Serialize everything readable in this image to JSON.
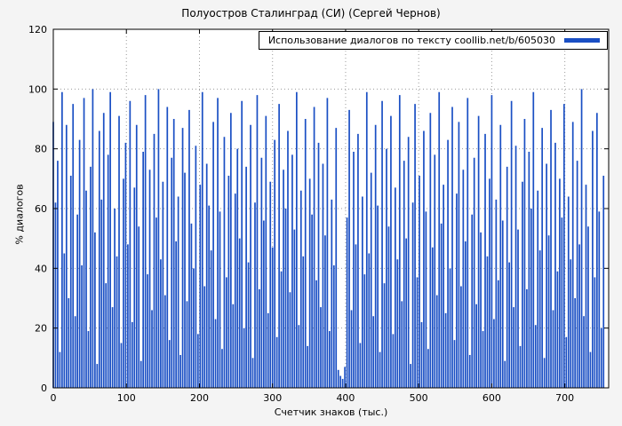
{
  "figure": {
    "title": "Полуостров Сталинград (СИ) (Сергей Чернов)",
    "legend_label": "Использование диалогов по тексту coollib.net/b/605030",
    "xlabel": "Счетчик знаков (тыс.)",
    "ylabel": "% диалогов"
  },
  "chart_data": {
    "type": "bar",
    "title": "Полуостров Сталинград (СИ) (Сергей Чернов)",
    "legend": "Использование диалогов по тексту coollib.net/b/605030",
    "xlabel": "Счетчик знаков (тыс.)",
    "ylabel": "% диалогов",
    "legend_position": "top-right-boxed",
    "grid": "dotted",
    "bar_color": "#1a4fc4",
    "background_color": "#f4f4f4",
    "plot_background": "#ffffff",
    "xlim": [
      0,
      760
    ],
    "ylim": [
      0,
      120
    ],
    "xticks": [
      0,
      100,
      200,
      300,
      400,
      500,
      600,
      700
    ],
    "yticks": [
      0,
      20,
      40,
      60,
      80,
      100,
      120
    ],
    "x_start": 0,
    "x_step": 3,
    "values": [
      89,
      62,
      76,
      12,
      99,
      45,
      88,
      30,
      71,
      95,
      24,
      58,
      83,
      41,
      97,
      66,
      19,
      74,
      100,
      52,
      8,
      86,
      63,
      92,
      35,
      78,
      99,
      27,
      60,
      44,
      91,
      15,
      70,
      82,
      48,
      96,
      22,
      67,
      88,
      54,
      9,
      79,
      98,
      38,
      73,
      26,
      85,
      57,
      100,
      43,
      69,
      31,
      94,
      16,
      77,
      90,
      49,
      64,
      11,
      87,
      72,
      29,
      93,
      55,
      40,
      81,
      18,
      68,
      99,
      34,
      75,
      61,
      46,
      89,
      23,
      97,
      59,
      13,
      84,
      37,
      71,
      92,
      28,
      65,
      80,
      50,
      96,
      20,
      74,
      42,
      88,
      10,
      62,
      98,
      33,
      77,
      56,
      91,
      25,
      69,
      47,
      83,
      17,
      95,
      39,
      73,
      60,
      86,
      32,
      78,
      53,
      99,
      21,
      66,
      44,
      90,
      14,
      70,
      58,
      94,
      36,
      82,
      27,
      75,
      51,
      97,
      19,
      63,
      41,
      87,
      6,
      4,
      3,
      7,
      57,
      93,
      26,
      79,
      48,
      85,
      15,
      64,
      38,
      99,
      45,
      72,
      24,
      88,
      61,
      12,
      96,
      35,
      80,
      54,
      91,
      18,
      67,
      43,
      98,
      29,
      76,
      50,
      84,
      8,
      62,
      95,
      37,
      71,
      22,
      86,
      59,
      13,
      92,
      47,
      78,
      31,
      99,
      55,
      68,
      25,
      83,
      40,
      94,
      16,
      65,
      89,
      34,
      73,
      49,
      97,
      11,
      58,
      77,
      28,
      91,
      52,
      19,
      85,
      44,
      70,
      98,
      23,
      63,
      36,
      88,
      56,
      9,
      74,
      42,
      96,
      27,
      81,
      53,
      14,
      69,
      90,
      33,
      79,
      60,
      99,
      21,
      66,
      46,
      87,
      10,
      75,
      51,
      93,
      26,
      82,
      39,
      70,
      57,
      95,
      17,
      64,
      43,
      89,
      30,
      76,
      48,
      100,
      24,
      68,
      54,
      12,
      86,
      37,
      92,
      59,
      20,
      71
    ]
  }
}
